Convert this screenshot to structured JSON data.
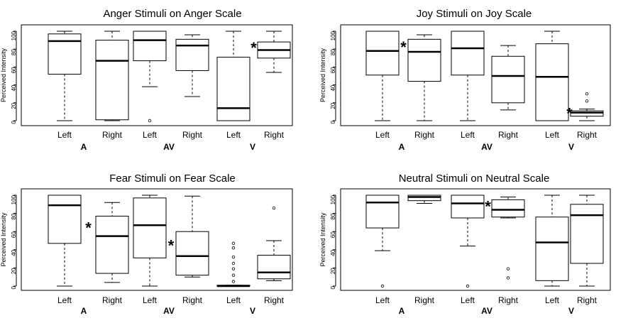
{
  "chart_data": [
    {
      "type": "boxplot",
      "title": "Anger Stimuli on Anger Scale",
      "ylabel": "Perceived Intensity",
      "ylim": [
        0,
        100
      ],
      "yticks": [
        "0",
        "20",
        "40",
        "60",
        "80",
        "100"
      ],
      "categories": [
        "Left",
        "Right",
        "Left",
        "Right",
        "Left",
        "Right"
      ],
      "groups": [
        "A",
        "AV",
        "V"
      ],
      "boxes": [
        {
          "min": 0,
          "q1": 52,
          "median": 89,
          "q3": 97,
          "max": 100,
          "outliers": []
        },
        {
          "min": 0,
          "q1": 1,
          "median": 67,
          "q3": 90,
          "max": 100,
          "outliers": []
        },
        {
          "min": 38,
          "q1": 67,
          "median": 90,
          "q3": 100,
          "max": 100,
          "outliers": [
            0
          ]
        },
        {
          "min": 27,
          "q1": 56,
          "median": 84,
          "q3": 91,
          "max": 96,
          "outliers": []
        },
        {
          "min": 0,
          "q1": 0,
          "median": 14,
          "q3": 71,
          "max": 100,
          "outliers": []
        },
        {
          "min": 54,
          "q1": 70,
          "median": 79,
          "q3": 88,
          "max": 100,
          "outliers": []
        }
      ],
      "significance": [
        {
          "symbol": "*",
          "between": [
            4,
            5
          ]
        }
      ]
    },
    {
      "type": "boxplot",
      "title": "Joy Stimuli on Joy Scale",
      "ylabel": "Perceived Intensity",
      "ylim": [
        0,
        100
      ],
      "yticks": [
        "0",
        "20",
        "40",
        "60",
        "80",
        "100"
      ],
      "categories": [
        "Left",
        "Right",
        "Left",
        "Right",
        "Left",
        "Right"
      ],
      "groups": [
        "A",
        "AV",
        "V"
      ],
      "boxes": [
        {
          "min": 0,
          "q1": 51,
          "median": 78,
          "q3": 100,
          "max": 100,
          "outliers": []
        },
        {
          "min": 0,
          "q1": 44,
          "median": 77,
          "q3": 91,
          "max": 96,
          "outliers": []
        },
        {
          "min": 0,
          "q1": 51,
          "median": 81,
          "q3": 100,
          "max": 100,
          "outliers": []
        },
        {
          "min": 12,
          "q1": 20,
          "median": 50,
          "q3": 72,
          "max": 84,
          "outliers": []
        },
        {
          "min": 0,
          "q1": 0,
          "median": 49,
          "q3": 86,
          "max": 100,
          "outliers": []
        },
        {
          "min": 0,
          "q1": 5,
          "median": 9,
          "q3": 11,
          "max": 13,
          "outliers": [
            22,
            30
          ]
        }
      ],
      "significance": [
        {
          "symbol": "*",
          "between": [
            0,
            1
          ]
        },
        {
          "symbol": "*",
          "between": [
            4,
            5
          ]
        }
      ]
    },
    {
      "type": "boxplot",
      "title": "Fear Stimuli on Fear Scale",
      "ylabel": "Perceived Intensity",
      "ylim": [
        0,
        100
      ],
      "yticks": [
        "0",
        "20",
        "40",
        "60",
        "80",
        "100"
      ],
      "categories": [
        "Left",
        "Right",
        "Left",
        "Right",
        "Left",
        "Right"
      ],
      "groups": [
        "A",
        "AV",
        "V"
      ],
      "boxes": [
        {
          "min": 0,
          "q1": 47,
          "median": 89,
          "q3": 100,
          "max": 100,
          "outliers": []
        },
        {
          "min": 4,
          "q1": 14,
          "median": 55,
          "q3": 77,
          "max": 92,
          "outliers": []
        },
        {
          "min": 0,
          "q1": 31,
          "median": 67,
          "q3": 97,
          "max": 100,
          "outliers": []
        },
        {
          "min": 10,
          "q1": 12,
          "median": 33,
          "q3": 60,
          "max": 99,
          "outliers": []
        },
        {
          "min": 0,
          "q1": 0,
          "median": 0,
          "q3": 1,
          "max": 1,
          "outliers": [
            5,
            12,
            19,
            25,
            32,
            42,
            47
          ]
        },
        {
          "min": 6,
          "q1": 8,
          "median": 15,
          "q3": 34,
          "max": 50,
          "outliers": [
            86
          ]
        }
      ],
      "significance": [
        {
          "symbol": "*",
          "between": [
            0,
            1
          ]
        },
        {
          "symbol": "*",
          "between": [
            2,
            3
          ]
        }
      ]
    },
    {
      "type": "boxplot",
      "title": "Neutral Stimuli on Neutral Scale",
      "ylabel": "Perceived Intensity",
      "ylim": [
        0,
        100
      ],
      "yticks": [
        "0",
        "20",
        "40",
        "60",
        "80",
        "100"
      ],
      "categories": [
        "Left",
        "Right",
        "Left",
        "Right",
        "Left",
        "Right"
      ],
      "groups": [
        "A",
        "AV",
        "V"
      ],
      "boxes": [
        {
          "min": 39,
          "q1": 64,
          "median": 92,
          "q3": 100,
          "max": 100,
          "outliers": [
            0
          ]
        },
        {
          "min": 91,
          "q1": 94,
          "median": 98,
          "q3": 100,
          "max": 100,
          "outliers": []
        },
        {
          "min": 44,
          "q1": 75,
          "median": 91,
          "q3": 100,
          "max": 100,
          "outliers": [
            0
          ]
        },
        {
          "min": 75,
          "q1": 76,
          "median": 84,
          "q3": 95,
          "max": 98,
          "outliers": [
            9,
            19
          ]
        },
        {
          "min": 0,
          "q1": 6,
          "median": 48,
          "q3": 76,
          "max": 100,
          "outliers": []
        },
        {
          "min": 0,
          "q1": 25,
          "median": 78,
          "q3": 90,
          "max": 100,
          "outliers": []
        }
      ],
      "significance": [
        {
          "symbol": "*",
          "between": [
            2,
            3
          ]
        }
      ]
    }
  ]
}
